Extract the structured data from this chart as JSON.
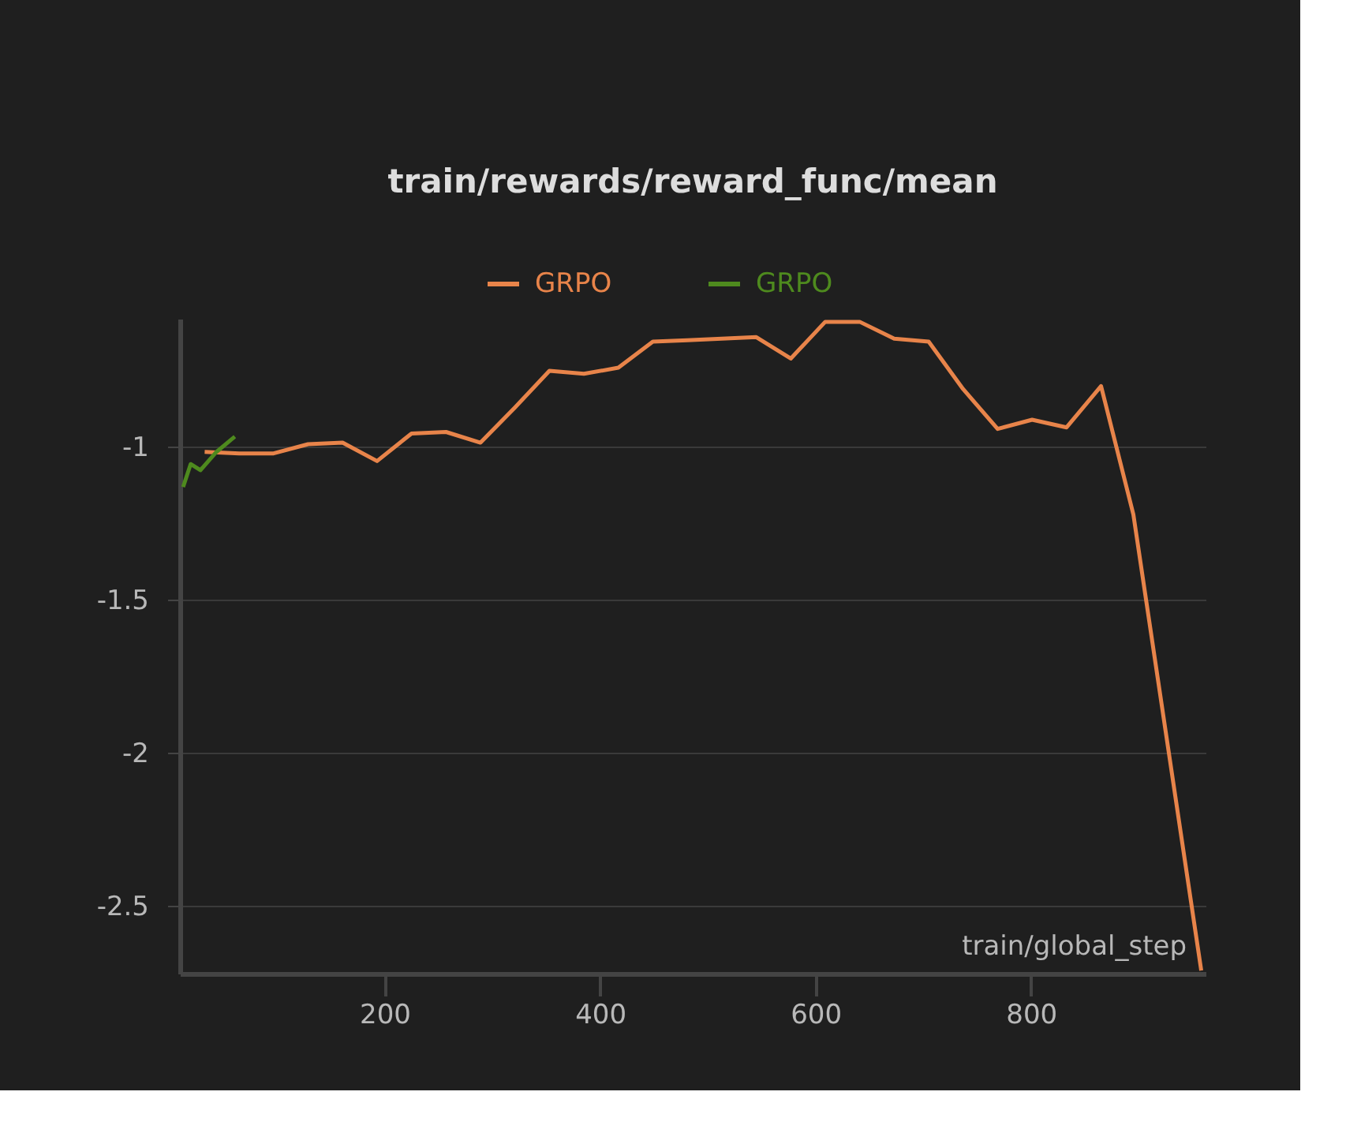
{
  "chart_data": {
    "type": "line",
    "title": "train/rewards/reward_func/mean",
    "xlabel": "train/global_step",
    "series": [
      {
        "name": "GRPO",
        "color": "#e8844a",
        "x": [
          33,
          65,
          97,
          129,
          161,
          193,
          225,
          257,
          289,
          321,
          353,
          385,
          417,
          449,
          481,
          513,
          545,
          577,
          609,
          641,
          673,
          705,
          737,
          769,
          801,
          833,
          865,
          895,
          958
        ],
        "values": [
          -1.015,
          -1.02,
          -1.02,
          -0.99,
          -0.985,
          -1.045,
          -0.955,
          -0.95,
          -0.985,
          -0.87,
          -0.75,
          -0.76,
          -0.74,
          -0.655,
          -0.65,
          -0.645,
          -0.64,
          -0.71,
          -0.59,
          -0.59,
          -0.645,
          -0.655,
          -0.81,
          -0.94,
          -0.91,
          -0.935,
          -0.8,
          -1.22,
          -2.71
        ]
      },
      {
        "name": "GRPO",
        "color": "#4e8a1e",
        "x": [
          13,
          20,
          29,
          44,
          61
        ],
        "values": [
          -1.13,
          -1.055,
          -1.075,
          -1.015,
          -0.965
        ]
      }
    ],
    "xlim": [
      10,
      962
    ],
    "ylim": [
      -2.72,
      -0.58
    ],
    "xticks": [
      200,
      400,
      600,
      800
    ],
    "yticks": [
      -2.5,
      -2,
      -1.5,
      -1
    ],
    "grid": "y",
    "legend": "top",
    "marker": "none",
    "line_style": "solid"
  }
}
